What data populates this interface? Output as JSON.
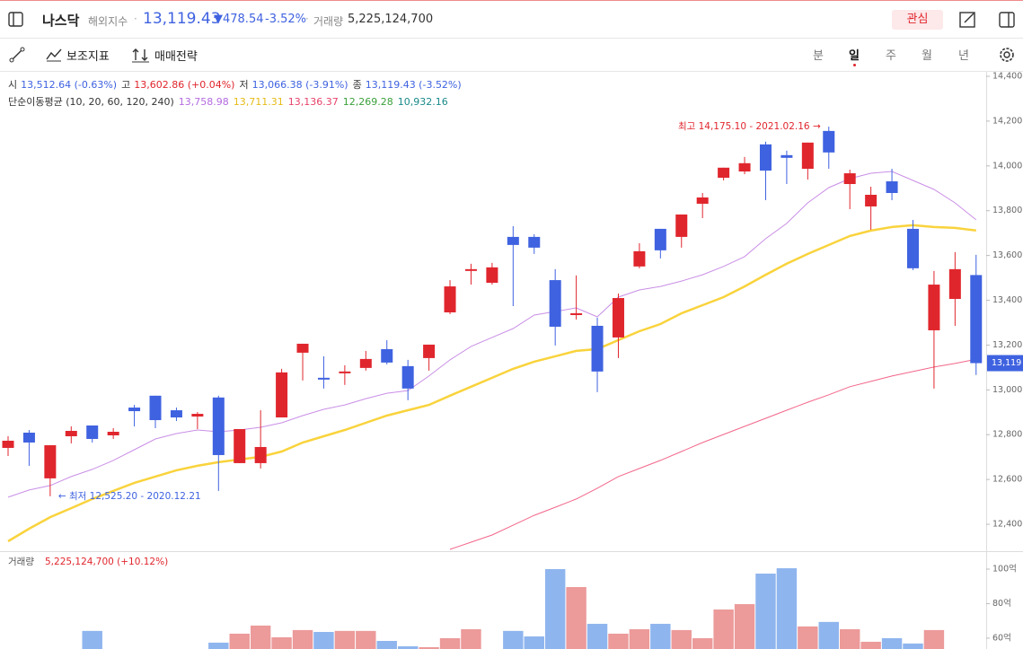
{
  "header": {
    "name": "나스닥",
    "category": "해외지수",
    "price": "13,119.43",
    "change": "▼478.54",
    "change_pct": "-3.52%",
    "volume_label": "거래량",
    "volume": "5,225,124,700",
    "watch": "관심"
  },
  "toolbar": {
    "indicators": "보조지표",
    "strategy": "매매전략",
    "periods": [
      "분",
      "일",
      "주",
      "월",
      "년"
    ],
    "selected_period": 1
  },
  "chart_data": {
    "type": "candlestick",
    "up_color": "#e0262d",
    "down_color": "#3f62e0",
    "open": [
      12741,
      12809,
      12605,
      12793,
      12841,
      12797,
      12921,
      12974,
      12909,
      12881,
      12966,
      12673,
      12673,
      12877,
      13166,
      13054,
      13074,
      13098,
      13182,
      13106,
      13142,
      13346,
      13531,
      13478,
      13683,
      13683,
      13490,
      13334,
      13286,
      13234,
      13551,
      13719,
      13683,
      13831,
      13947,
      13975,
      14096,
      14048,
      13987,
      14156,
      13919,
      13819,
      13931,
      13719,
      13266,
      13406,
      13512.64
    ],
    "high": [
      12793,
      12821,
      12753,
      12837,
      12841,
      12829,
      12933,
      12974,
      12921,
      12901,
      12974,
      12825,
      12909,
      13094,
      13206,
      13150,
      13110,
      13174,
      13222,
      13134,
      13202,
      13490,
      13563,
      13567,
      13731,
      13695,
      13539,
      13511,
      13322,
      13430,
      13655,
      13719,
      13783,
      13879,
      13992,
      14040,
      14108,
      14068,
      14104,
      14175.1,
      13983,
      13907,
      13987,
      13759,
      13531,
      13615,
      13602.86
    ],
    "low": [
      12705,
      12661,
      12525.2,
      12761,
      12765,
      12781,
      12837,
      12829,
      12861,
      12825,
      12549,
      12673,
      12649,
      12877,
      13042,
      13006,
      13022,
      13086,
      13114,
      12954,
      13086,
      13338,
      13470,
      13470,
      13374,
      13607,
      13198,
      13314,
      12990,
      13142,
      13543,
      13587,
      13635,
      13767,
      13935,
      13963,
      13847,
      13919,
      13939,
      13987,
      13807,
      13715,
      13847,
      13535,
      13006,
      13286,
      13066.38
    ],
    "close": [
      12773,
      12765,
      12753,
      12817,
      12781,
      12813,
      12905,
      12865,
      12877,
      12893,
      12709,
      12825,
      12745,
      13078,
      13206,
      13046,
      13082,
      13138,
      13122,
      13006,
      13202,
      13462,
      13539,
      13547,
      13647,
      13635,
      13282,
      13342,
      13082,
      13410,
      13619,
      13623,
      13783,
      13859,
      13992,
      14012,
      13979,
      14036,
      14104,
      14060,
      13967,
      13871,
      13879,
      13543,
      13470,
      13539,
      13119.43
    ],
    "ma_lines": [
      {
        "color": "#c98fe6",
        "width": 1,
        "values": [
          12521,
          12553,
          12573,
          12613,
          12645,
          12685,
          12733,
          12781,
          12805,
          12821,
          12813,
          12821,
          12833,
          12853,
          12885,
          12913,
          12933,
          12961,
          12985,
          12997,
          13062,
          13134,
          13194,
          13234,
          13274,
          13334,
          13350,
          13366,
          13326,
          13414,
          13446,
          13462,
          13486,
          13514,
          13551,
          13595,
          13675,
          13743,
          13835,
          13903,
          13943,
          13967,
          13975,
          13935,
          13895,
          13835,
          13758.98
        ]
      },
      {
        "color": "#f9d33c",
        "width": 2.5,
        "values": [
          12324,
          12380,
          12432,
          12472,
          12513,
          12549,
          12585,
          12613,
          12641,
          12661,
          12677,
          12689,
          12701,
          12725,
          12765,
          12793,
          12821,
          12853,
          12885,
          12909,
          12933,
          12974,
          13014,
          13054,
          13094,
          13126,
          13150,
          13174,
          13182,
          13222,
          13262,
          13294,
          13342,
          13378,
          13414,
          13462,
          13514,
          13563,
          13607,
          13647,
          13687,
          13711,
          13727,
          13735,
          13727,
          13723,
          13711.31
        ]
      },
      {
        "color": "#f2668a",
        "width": 1,
        "values": [
          null,
          null,
          null,
          null,
          null,
          null,
          null,
          null,
          null,
          null,
          null,
          null,
          null,
          null,
          null,
          null,
          null,
          null,
          null,
          null,
          null,
          12288,
          12320,
          12352,
          12396,
          12440,
          12476,
          12513,
          12561,
          12613,
          12649,
          12685,
          12725,
          12765,
          12801,
          12837,
          12873,
          12909,
          12945,
          12978,
          13014,
          13038,
          13062,
          13082,
          13102,
          13118,
          13136.37
        ]
      }
    ],
    "ma_title": "단순이동평균 (10, 20, 60, 120, 240)",
    "ma_legend": [
      {
        "label": "13,758.98",
        "color": "#b46be0"
      },
      {
        "label": "13,711.31",
        "color": "#e6bb17"
      },
      {
        "label": "13,136.37",
        "color": "#e8426b"
      },
      {
        "label": "12,269.28",
        "color": "#3aa03a"
      },
      {
        "label": "10,932.16",
        "color": "#1a8a8a"
      }
    ],
    "ohlc_info": [
      {
        "label": "시",
        "value": "13,512.64 (-0.63%)",
        "color": "#3f62e0"
      },
      {
        "label": "고",
        "value": "13,602.86 (+0.04%)",
        "color": "#e0262d"
      },
      {
        "label": "저",
        "value": "13,066.38 (-3.91%)",
        "color": "#3f62e0"
      },
      {
        "label": "종",
        "value": "13,119.43 (-3.52%)",
        "color": "#3f62e0"
      }
    ],
    "annotations": {
      "high": "최고 14,175.10 - 2021.02.16 →",
      "low": "← 최저 12,525.20 - 2020.12.21"
    },
    "current": {
      "value": 13119.43,
      "label": "13,119"
    },
    "ylim": [
      12280,
      14420
    ],
    "yticks": [
      {
        "value": 12400,
        "label": "12,400"
      },
      {
        "value": 12600,
        "label": "12,600"
      },
      {
        "value": 12800,
        "label": "12,800"
      },
      {
        "value": 13000,
        "label": "13,000"
      },
      {
        "value": 13200,
        "label": "13,200"
      },
      {
        "value": 13400,
        "label": "13,400"
      },
      {
        "value": 13600,
        "label": "13,600"
      },
      {
        "value": 13800,
        "label": "13,800"
      },
      {
        "value": 14000,
        "label": "14,000"
      },
      {
        "value": 14200,
        "label": "14,200"
      },
      {
        "value": 14400,
        "label": "14,400"
      }
    ],
    "grid": false,
    "volume": {
      "title": "거래량",
      "info": "5,225,124,700 (+10.12%)",
      "up_color": "#ec9a9a",
      "down_color": "#8fb5ee",
      "values": [
        null,
        null,
        null,
        null,
        64.2,
        null,
        null,
        null,
        null,
        null,
        57.4,
        62.6,
        67.3,
        60.5,
        64.7,
        63.6,
        64.2,
        64.2,
        58.4,
        55.3,
        54.8,
        60,
        65.2,
        null,
        64.2,
        61,
        100,
        89.6,
        68.3,
        62.6,
        65.2,
        68.3,
        64.7,
        60,
        76.6,
        79.7,
        97.4,
        100.5,
        66.8,
        69.4,
        65.2,
        57.9,
        60,
        56.9,
        64.7,
        null,
        52.251247
      ],
      "ylim": [
        53.2,
        110.4
      ],
      "yticks": [
        {
          "value": 60,
          "label": "60억"
        },
        {
          "value": 80,
          "label": "80억"
        },
        {
          "value": 100,
          "label": "100억"
        }
      ]
    }
  }
}
